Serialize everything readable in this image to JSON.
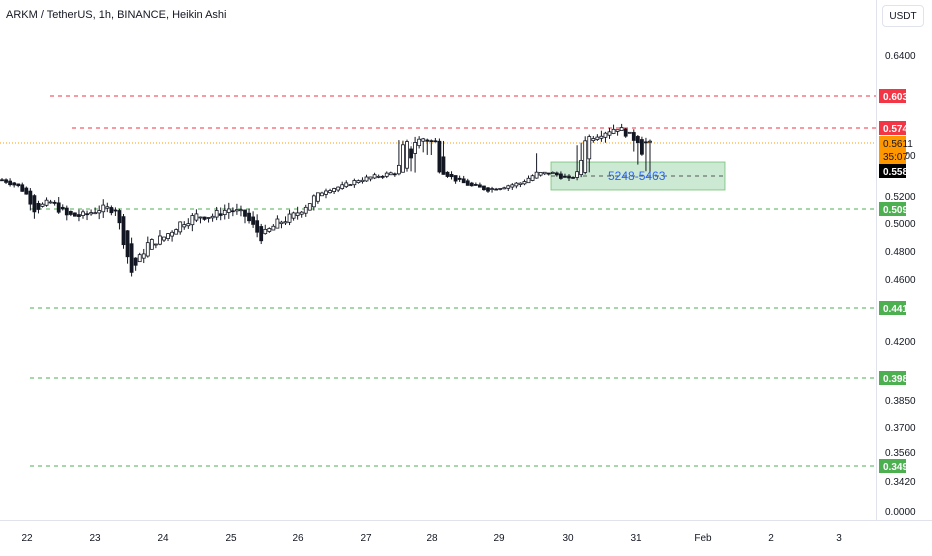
{
  "header": {
    "title": "ARKM / TetherUS, 1h, BINANCE, Heikin Ashi",
    "currency": "USDT"
  },
  "colors": {
    "bull": "#26a69a",
    "bear": "#131722",
    "resistance": "#f23645",
    "support": "#4caf50",
    "last_price": "#ff9800",
    "zone_fill": "#b7e1c1",
    "zone_border": "#4caf50",
    "zone_text": "#2962ff"
  },
  "price_scale": {
    "ticks": [
      "0.6400",
      "0.5600",
      "0.5200",
      "0.5000",
      "0.4800",
      "0.4600",
      "0.4200",
      "0.3850",
      "0.3700",
      "0.3560",
      "0.3420",
      "0.0000"
    ],
    "tick_values": [
      0.64,
      0.56,
      0.52,
      0.5,
      0.48,
      0.46,
      0.42,
      0.385,
      0.37,
      0.356,
      0.342,
      0.0
    ]
  },
  "time_scale": {
    "labels": [
      "22",
      "23",
      "24",
      "25",
      "26",
      "27",
      "28",
      "29",
      "30",
      "31",
      "Feb",
      "2",
      "3"
    ]
  },
  "levels": [
    {
      "label": "0.6031",
      "value": 0.6031,
      "kind": "resistance"
    },
    {
      "label": "0.5743",
      "value": 0.5743,
      "kind": "resistance"
    },
    {
      "label": "0.5097",
      "value": 0.5097,
      "kind": "support"
    },
    {
      "label": "0.4418",
      "value": 0.4418,
      "kind": "support"
    },
    {
      "label": "0.3982",
      "value": 0.3982,
      "kind": "support"
    },
    {
      "label": "0.3497",
      "value": 0.3497,
      "kind": "support"
    }
  ],
  "last_price": {
    "label": "0.5611",
    "value": 0.5611,
    "countdown": "35:07"
  },
  "close_price": {
    "label": "0.5585",
    "value": 0.5585
  },
  "zone": {
    "label": "5248-5463",
    "low": 0.5248,
    "high": 0.5463
  },
  "chart_data": {
    "type": "candlestick",
    "style": "Heikin Ashi",
    "interval": "1h",
    "x_labels": [
      "22",
      "23",
      "24",
      "25",
      "26",
      "27",
      "28",
      "29",
      "30",
      "31",
      "Feb",
      "2",
      "3"
    ],
    "ohlc_anchor_closes": [
      0.545,
      0.535,
      0.51,
      0.515,
      0.505,
      0.505,
      0.51,
      0.51,
      0.465,
      0.485,
      0.49,
      0.5,
      0.505,
      0.505,
      0.51,
      0.505,
      0.49,
      0.5,
      0.505,
      0.515,
      0.53,
      0.535,
      0.545,
      0.55,
      0.555,
      0.56,
      0.565,
      0.56,
      0.545,
      0.535,
      0.53,
      0.535,
      0.54,
      0.555,
      0.555,
      0.545,
      0.565,
      0.57,
      0.575,
      0.565,
      0.56
    ]
  }
}
